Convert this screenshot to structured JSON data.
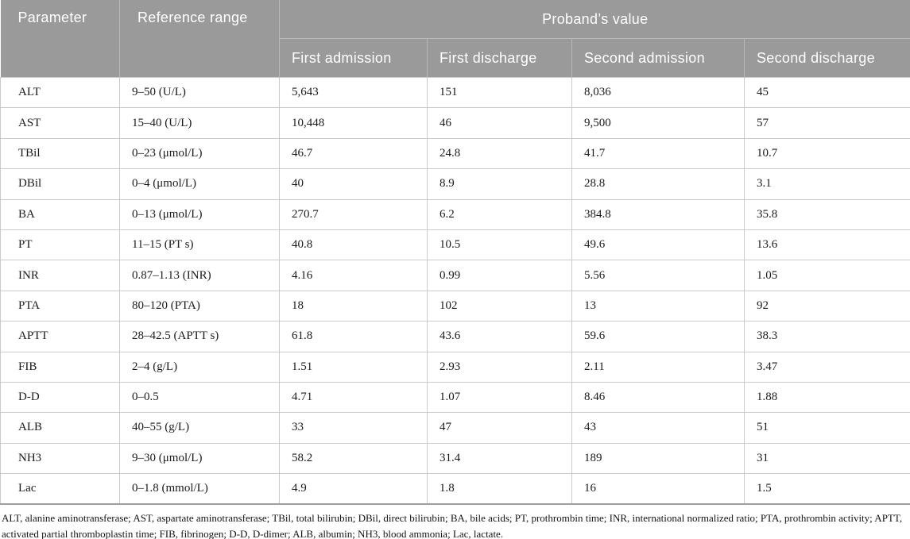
{
  "colors": {
    "header_bg": "#9a9a9a",
    "header_text": "#ffffff",
    "header_divider": "#b9b9b9",
    "grid_line": "#cbcbcb",
    "grid_strong": "#9e9e9e"
  },
  "table": {
    "header": {
      "parameter": "Parameter",
      "reference_range": "Reference range",
      "probands_value": "Proband’s value",
      "subcolumns": [
        "First admission",
        "First discharge",
        "Second admission",
        "Second discharge"
      ]
    },
    "rows": [
      {
        "parameter": "ALT",
        "reference": "9–50 (U/L)",
        "values": [
          "5,643",
          "151",
          "8,036",
          "45"
        ]
      },
      {
        "parameter": "AST",
        "reference": "15–40 (U/L)",
        "values": [
          "10,448",
          "46",
          "9,500",
          "57"
        ]
      },
      {
        "parameter": "TBil",
        "reference": "0–23 (μmol/L)",
        "values": [
          "46.7",
          "24.8",
          "41.7",
          "10.7"
        ]
      },
      {
        "parameter": "DBil",
        "reference": "0–4 (μmol/L)",
        "values": [
          "40",
          "8.9",
          "28.8",
          "3.1"
        ]
      },
      {
        "parameter": "BA",
        "reference": "0–13 (μmol/L)",
        "values": [
          "270.7",
          "6.2",
          "384.8",
          "35.8"
        ]
      },
      {
        "parameter": "PT",
        "reference": "11–15 (PT s)",
        "values": [
          "40.8",
          "10.5",
          "49.6",
          "13.6"
        ]
      },
      {
        "parameter": "INR",
        "reference": "0.87–1.13 (INR)",
        "values": [
          "4.16",
          "0.99",
          "5.56",
          "1.05"
        ]
      },
      {
        "parameter": "PTA",
        "reference": "80–120 (PTA)",
        "values": [
          "18",
          "102",
          "13",
          "92"
        ]
      },
      {
        "parameter": "APTT",
        "reference": "28–42.5 (APTT s)",
        "values": [
          "61.8",
          "43.6",
          "59.6",
          "38.3"
        ]
      },
      {
        "parameter": "FIB",
        "reference": "2–4 (g/L)",
        "values": [
          "1.51",
          "2.93",
          "2.11",
          "3.47"
        ]
      },
      {
        "parameter": "D-D",
        "reference": "0–0.5",
        "values": [
          "4.71",
          "1.07",
          "8.46",
          "1.88"
        ]
      },
      {
        "parameter": "ALB",
        "reference": "40–55 (g/L)",
        "values": [
          "33",
          "47",
          "43",
          "51"
        ]
      },
      {
        "parameter": "NH3",
        "reference": "9–30 (μmol/L)",
        "values": [
          "58.2",
          "31.4",
          "189",
          "31"
        ]
      },
      {
        "parameter": "Lac",
        "reference": "0–1.8 (mmol/L)",
        "values": [
          "4.9",
          "1.8",
          "16",
          "1.5"
        ]
      }
    ],
    "footnote": "ALT, alanine aminotransferase; AST, aspartate aminotransferase; TBil, total bilirubin; DBil, direct bilirubin; BA, bile acids; PT, prothrombin time; INR, international normalized ratio; PTA, prothrombin activity; APTT, activated partial thromboplastin time; FIB, fibrinogen; D-D, D-dimer; ALB, albumin; NH3, blood ammonia; Lac, lactate."
  }
}
